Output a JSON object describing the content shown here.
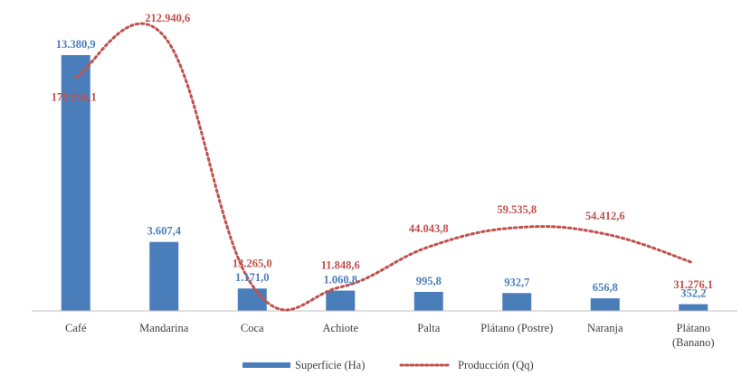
{
  "chart_data": {
    "type": "bar",
    "categories": [
      "Café",
      "Mandarina",
      "Coca",
      "Achiote",
      "Palta",
      "Plátano (Postre)",
      "Naranja",
      "Plátano (Banano)"
    ],
    "series": [
      {
        "name": "Superficie (Ha)",
        "type": "bar",
        "axis": "left",
        "color": "#4a7ebb",
        "values": [
          13380.9,
          3607.4,
          1171.0,
          1060.8,
          995.8,
          932.7,
          656.8,
          352.2
        ],
        "labels": [
          "13.380,9",
          "3.607,4",
          "1.171,0",
          "1.060,8",
          "995,8",
          "932,7",
          "656,8",
          "352,2"
        ]
      },
      {
        "name": "Producción (Qq)",
        "type": "line",
        "style": "dotted",
        "axis": "right",
        "color": "#c0504d",
        "values": [
          179956.1,
          212940.6,
          13265.0,
          11848.6,
          44043.8,
          59535.8,
          54412.6,
          31276.1
        ],
        "labels": [
          "179.956,1",
          "212.940,6",
          "13.265,0",
          "11.848,6",
          "44.043,8",
          "59.535,8",
          "54.412,6",
          "31.276,1"
        ]
      }
    ],
    "legend": {
      "placement": "bottom-center"
    },
    "grid": false,
    "axes_visible": false
  }
}
